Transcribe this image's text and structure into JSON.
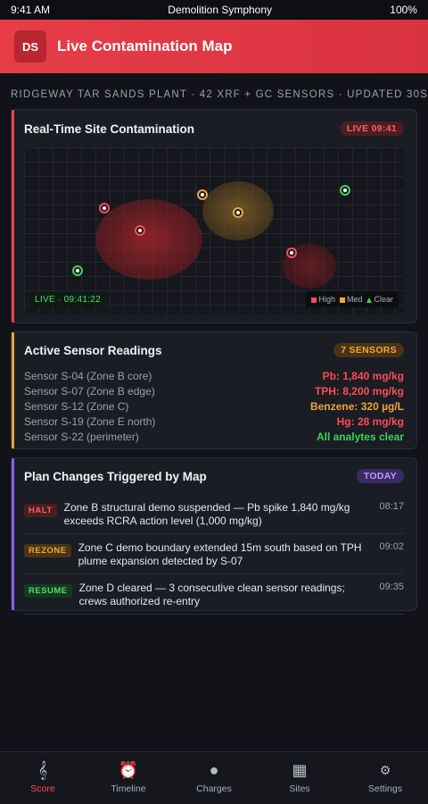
{
  "status_bar": {
    "time": "9:41 AM",
    "app_name": "Demolition Symphony",
    "battery": "100%"
  },
  "header": {
    "avatar_initials": "DS",
    "title": "Live Contamination Map"
  },
  "context_line": "RIDGEWAY TAR SANDS PLANT · 42 XRF + GC SENSORS · UPDATED 30S",
  "map_card": {
    "title": "Real-Time Site Contamination",
    "live_badge": "LIVE 09:41",
    "map_timestamp": "LIVE · 09:41:22",
    "legend": {
      "high": "High",
      "med": "Med",
      "clear": "Clear"
    },
    "colors": {
      "high": "#ff4b55",
      "med": "#f0a53a",
      "clear": "#3fcf5c"
    }
  },
  "readings_card": {
    "title": "Active Sensor Readings",
    "badge": "7 SENSORS",
    "rows": [
      {
        "name": "Sensor S-04 (Zone B core)",
        "value": "Pb: 1,840 mg/kg",
        "level": "high"
      },
      {
        "name": "Sensor S-07 (Zone B edge)",
        "value": "TPH: 8,200 mg/kg",
        "level": "high"
      },
      {
        "name": "Sensor S-12 (Zone C)",
        "value": "Benzene: 320 µg/L",
        "level": "med"
      },
      {
        "name": "Sensor S-19 (Zone E north)",
        "value": "Hg: 28 mg/kg",
        "level": "high"
      },
      {
        "name": "Sensor S-22 (perimeter)",
        "value": "All analytes clear",
        "level": "clear"
      }
    ]
  },
  "plan_card": {
    "title": "Plan Changes Triggered by Map",
    "badge": "TODAY",
    "changes": [
      {
        "tag": "HALT",
        "text": "Zone B structural demo suspended — Pb spike 1,840 mg/kg exceeds RCRA action level (1,000 mg/kg)",
        "time": "08:17"
      },
      {
        "tag": "REZONE",
        "text": "Zone C demo boundary extended 15m south based on TPH plume expansion detected by S-07",
        "time": "09:02"
      },
      {
        "tag": "RESUME",
        "text": "Zone D cleared — 3 consecutive clean sensor readings; crews authorized re-entry",
        "time": "09:35"
      }
    ]
  },
  "tabs": [
    {
      "label": "Score",
      "icon": "score-icon",
      "active": true
    },
    {
      "label": "Timeline",
      "icon": "alarm-clock-icon",
      "active": false
    },
    {
      "label": "Charges",
      "icon": "bomb-icon",
      "active": false
    },
    {
      "label": "Sites",
      "icon": "building-icon",
      "active": false
    },
    {
      "label": "Settings",
      "icon": "gear-icon",
      "active": false
    }
  ]
}
